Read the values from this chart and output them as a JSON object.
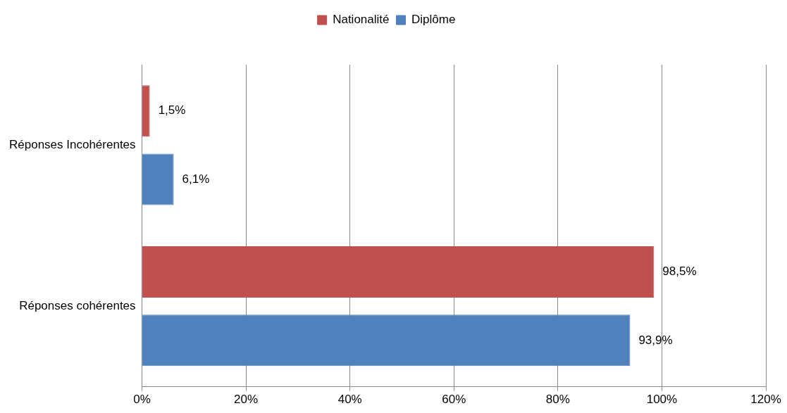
{
  "chart_data": {
    "type": "bar",
    "orientation": "horizontal",
    "categories": [
      "Réponses Incohérentes",
      "Réponses cohérentes"
    ],
    "series": [
      {
        "name": "Nationalité",
        "color": "#c0504d",
        "values": [
          1.5,
          98.5
        ],
        "value_labels": [
          "1,5%",
          "98,5%"
        ]
      },
      {
        "name": "Diplôme",
        "color": "#4f81bd",
        "values": [
          6.1,
          93.9
        ],
        "value_labels": [
          "6,1%",
          "93,9%"
        ]
      }
    ],
    "xlim": [
      0,
      120
    ],
    "xticks": [
      {
        "value": 0,
        "label": "0%"
      },
      {
        "value": 20,
        "label": "20%"
      },
      {
        "value": 40,
        "label": "40%"
      },
      {
        "value": 60,
        "label": "60%"
      },
      {
        "value": 80,
        "label": "80%"
      },
      {
        "value": 100,
        "label": "100%"
      },
      {
        "value": 120,
        "label": "120%"
      }
    ],
    "grid": "x",
    "legend": "top"
  }
}
